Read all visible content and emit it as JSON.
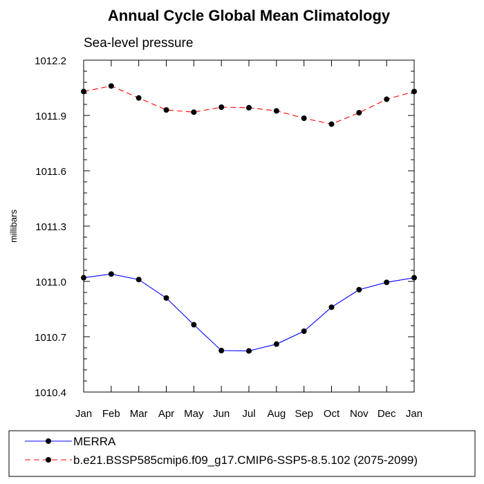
{
  "chart_data": {
    "type": "line",
    "title": "Annual Cycle Global Mean Climatology",
    "subtitle": "Sea-level pressure",
    "ylabel": "millibars",
    "xlabel": "",
    "categories": [
      "Jan",
      "Feb",
      "Mar",
      "Apr",
      "May",
      "Jun",
      "Jul",
      "Aug",
      "Sep",
      "Oct",
      "Nov",
      "Dec",
      "Jan"
    ],
    "ylim": [
      1010.4,
      1012.2
    ],
    "yticks": [
      "1010.4",
      "1010.7",
      "1011.0",
      "1011.3",
      "1011.6",
      "1011.9",
      "1012.2"
    ],
    "grid": false,
    "legend_position": "bottom",
    "series": [
      {
        "name": "MERRA",
        "color": "#0000ff",
        "dash": "solid",
        "marker_color": "#000000",
        "values": [
          1011.02,
          1011.04,
          1011.01,
          1010.91,
          1010.765,
          1010.625,
          1010.623,
          1010.66,
          1010.73,
          1010.86,
          1010.955,
          1010.995,
          1011.02
        ]
      },
      {
        "name": "b.e21.BSSP585cmip6.f09_g17.CMIP6-SSP5-8.5.102 (2075-2099)",
        "color": "#ff0000",
        "dash": "dashed",
        "marker_color": "#000000",
        "values": [
          1012.03,
          1012.06,
          1011.995,
          1011.93,
          1011.918,
          1011.945,
          1011.942,
          1011.925,
          1011.885,
          1011.853,
          1011.915,
          1011.988,
          1012.03
        ]
      }
    ]
  }
}
